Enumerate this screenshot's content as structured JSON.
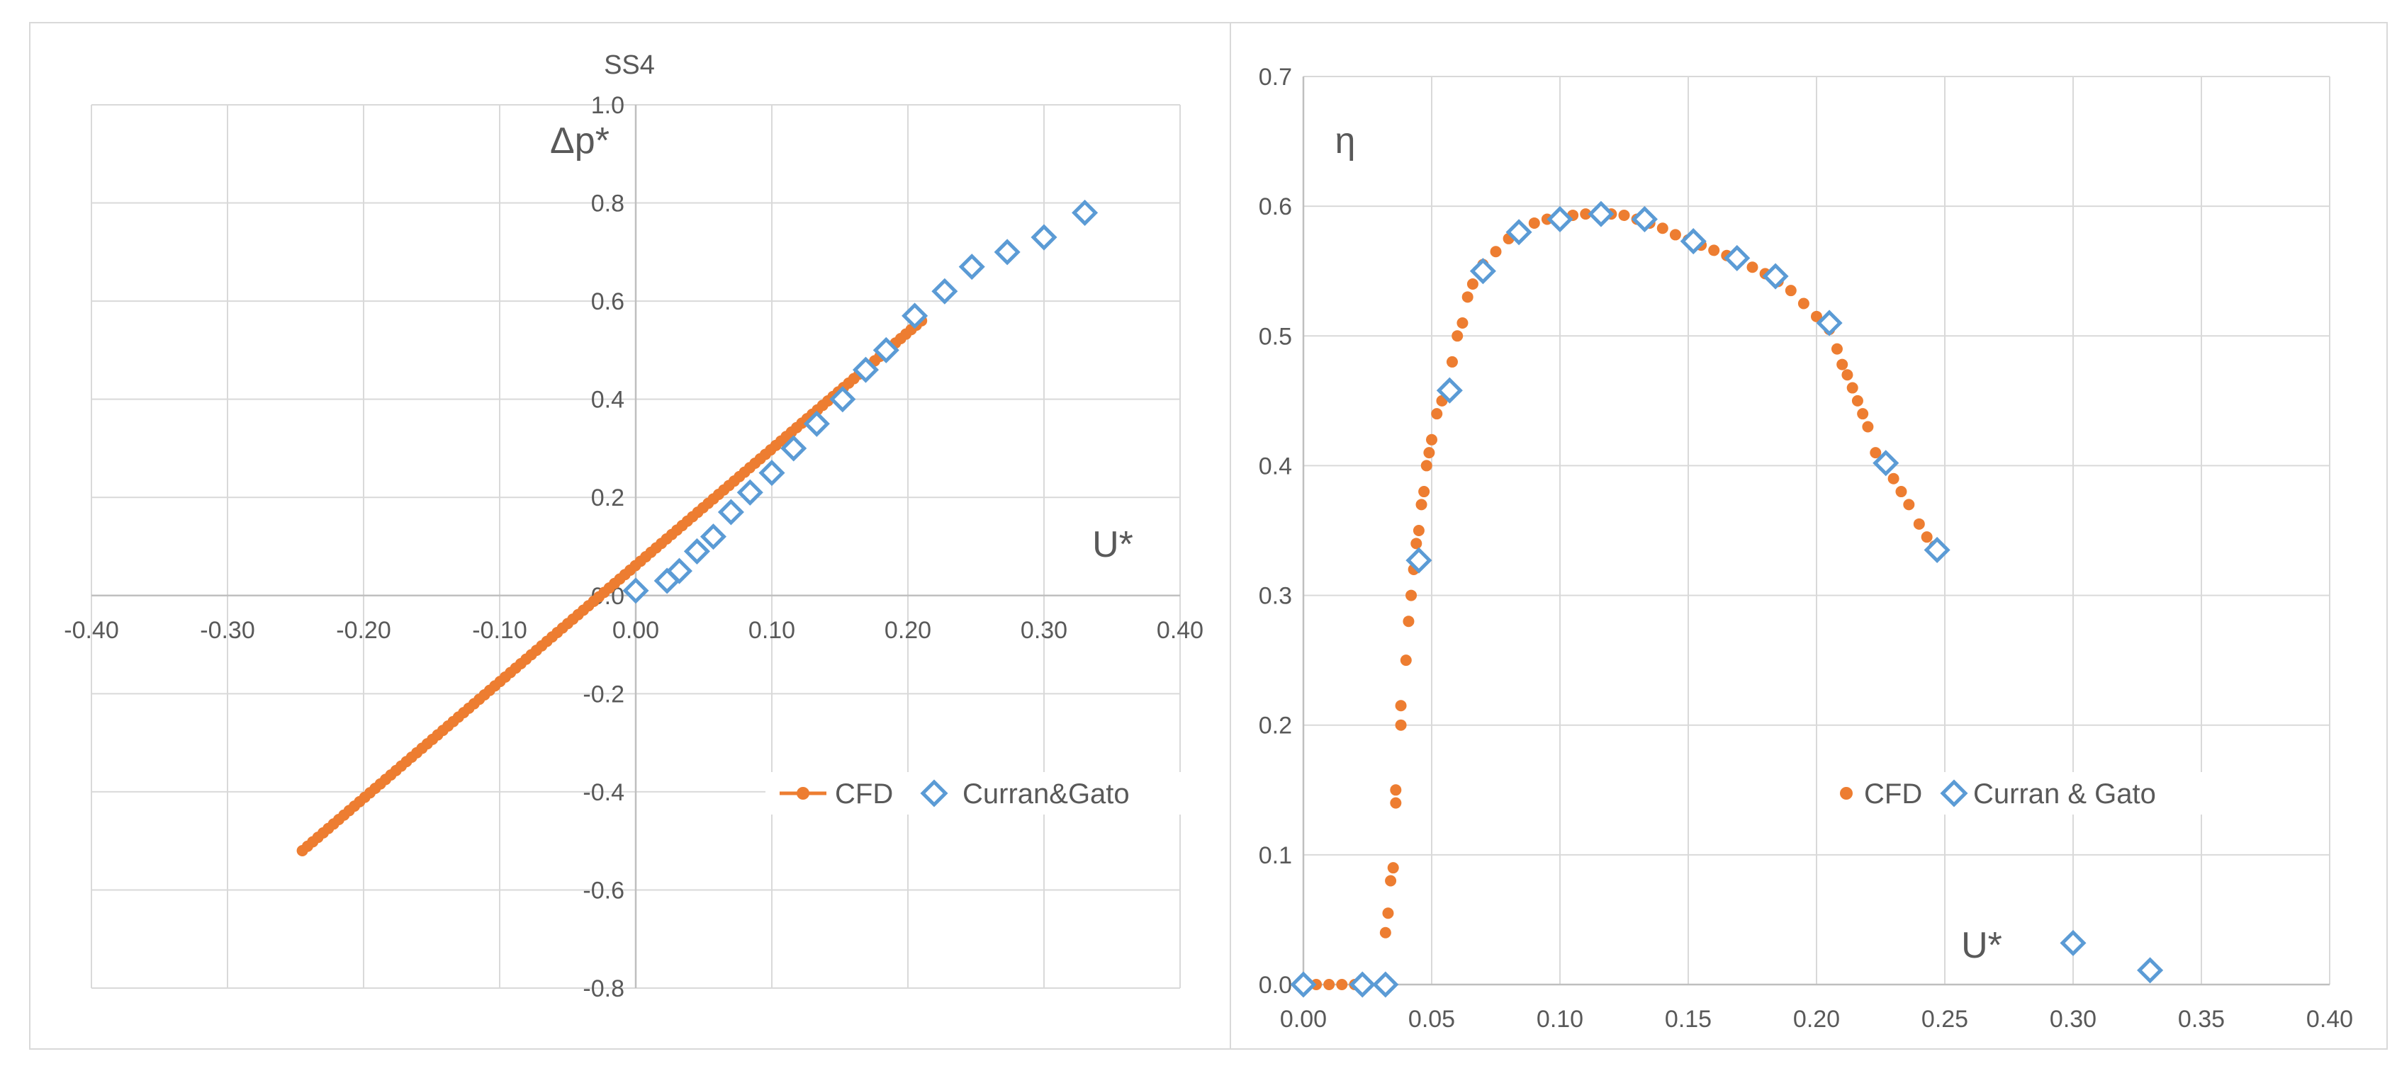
{
  "colors": {
    "cfd": "#ED7D31",
    "exp": "#5B9BD5",
    "grid": "#D9D9D9",
    "text": "#595959"
  },
  "chart_data": [
    {
      "type": "scatter",
      "title": "SS4",
      "xlabel": "U*",
      "ylabel": "Δp*",
      "xlim": [
        -0.4,
        0.4
      ],
      "ylim": [
        -0.8,
        1.0
      ],
      "xticks": [
        "-0.40",
        "-0.30",
        "-0.20",
        "-0.10",
        "0.00",
        "0.10",
        "0.20",
        "0.30",
        "0.40"
      ],
      "yticks": [
        "-0.8",
        "-0.6",
        "-0.4",
        "-0.2",
        "0.0",
        "0.2",
        "0.4",
        "0.6",
        "0.8",
        "1.0"
      ],
      "legend": {
        "position": "lower-right",
        "entries": [
          "CFD",
          "Curran&Gato"
        ]
      },
      "series": [
        {
          "name": "CFD",
          "marker": "circle",
          "line_from": [
            -0.245,
            -0.52
          ],
          "line_to": [
            0.21,
            0.56
          ],
          "points": 120
        },
        {
          "name": "Curran&Gato",
          "marker": "diamond",
          "points_xy": [
            [
              0.0,
              0.01
            ],
            [
              0.023,
              0.03
            ],
            [
              0.032,
              0.05
            ],
            [
              0.045,
              0.09
            ],
            [
              0.057,
              0.12
            ],
            [
              0.07,
              0.17
            ],
            [
              0.084,
              0.21
            ],
            [
              0.1,
              0.25
            ],
            [
              0.116,
              0.3
            ],
            [
              0.133,
              0.35
            ],
            [
              0.152,
              0.4
            ],
            [
              0.169,
              0.46
            ],
            [
              0.184,
              0.5
            ],
            [
              0.205,
              0.57
            ],
            [
              0.227,
              0.62
            ],
            [
              0.247,
              0.67
            ],
            [
              0.273,
              0.7
            ],
            [
              0.3,
              0.73
            ],
            [
              0.33,
              0.78
            ]
          ]
        }
      ]
    },
    {
      "type": "scatter",
      "title": "",
      "xlabel": "U*",
      "ylabel": "η",
      "xlim": [
        0.0,
        0.4
      ],
      "ylim": [
        0.0,
        0.7
      ],
      "xticks": [
        "0.00",
        "0.05",
        "0.10",
        "0.15",
        "0.20",
        "0.25",
        "0.30",
        "0.35",
        "0.40"
      ],
      "yticks": [
        "0.0",
        "0.1",
        "0.2",
        "0.3",
        "0.4",
        "0.5",
        "0.6",
        "0.7"
      ],
      "legend": {
        "position": "lower-center",
        "entries": [
          "CFD",
          "Curran & Gato"
        ]
      },
      "series": [
        {
          "name": "CFD",
          "marker": "circle",
          "points_xy": [
            [
              0.0,
              0.0
            ],
            [
              0.005,
              0.0
            ],
            [
              0.01,
              0.0
            ],
            [
              0.015,
              0.0
            ],
            [
              0.02,
              0.0
            ],
            [
              0.025,
              0.0
            ],
            [
              0.03,
              0.0
            ],
            [
              0.032,
              0.04
            ],
            [
              0.033,
              0.055
            ],
            [
              0.034,
              0.08
            ],
            [
              0.035,
              0.09
            ],
            [
              0.036,
              0.14
            ],
            [
              0.036,
              0.15
            ],
            [
              0.038,
              0.2
            ],
            [
              0.038,
              0.215
            ],
            [
              0.04,
              0.25
            ],
            [
              0.041,
              0.28
            ],
            [
              0.042,
              0.3
            ],
            [
              0.043,
              0.32
            ],
            [
              0.044,
              0.34
            ],
            [
              0.045,
              0.35
            ],
            [
              0.046,
              0.37
            ],
            [
              0.047,
              0.38
            ],
            [
              0.048,
              0.4
            ],
            [
              0.049,
              0.41
            ],
            [
              0.05,
              0.42
            ],
            [
              0.052,
              0.44
            ],
            [
              0.054,
              0.45
            ],
            [
              0.056,
              0.46
            ],
            [
              0.058,
              0.48
            ],
            [
              0.06,
              0.5
            ],
            [
              0.062,
              0.51
            ],
            [
              0.064,
              0.53
            ],
            [
              0.066,
              0.54
            ],
            [
              0.068,
              0.55
            ],
            [
              0.07,
              0.555
            ],
            [
              0.075,
              0.565
            ],
            [
              0.08,
              0.575
            ],
            [
              0.085,
              0.582
            ],
            [
              0.09,
              0.587
            ],
            [
              0.095,
              0.59
            ],
            [
              0.1,
              0.592
            ],
            [
              0.105,
              0.593
            ],
            [
              0.11,
              0.594
            ],
            [
              0.115,
              0.594
            ],
            [
              0.12,
              0.594
            ],
            [
              0.125,
              0.593
            ],
            [
              0.13,
              0.59
            ],
            [
              0.135,
              0.587
            ],
            [
              0.14,
              0.583
            ],
            [
              0.145,
              0.578
            ],
            [
              0.15,
              0.574
            ],
            [
              0.155,
              0.57
            ],
            [
              0.16,
              0.566
            ],
            [
              0.165,
              0.562
            ],
            [
              0.17,
              0.558
            ],
            [
              0.175,
              0.553
            ],
            [
              0.18,
              0.548
            ],
            [
              0.185,
              0.542
            ],
            [
              0.19,
              0.535
            ],
            [
              0.195,
              0.525
            ],
            [
              0.2,
              0.515
            ],
            [
              0.205,
              0.505
            ],
            [
              0.208,
              0.49
            ],
            [
              0.21,
              0.478
            ],
            [
              0.212,
              0.47
            ],
            [
              0.214,
              0.46
            ],
            [
              0.216,
              0.45
            ],
            [
              0.218,
              0.44
            ],
            [
              0.22,
              0.43
            ],
            [
              0.223,
              0.41
            ],
            [
              0.226,
              0.4
            ],
            [
              0.23,
              0.39
            ],
            [
              0.233,
              0.38
            ],
            [
              0.236,
              0.37
            ],
            [
              0.24,
              0.355
            ],
            [
              0.243,
              0.345
            ],
            [
              0.246,
              0.338
            ]
          ]
        },
        {
          "name": "Curran & Gato",
          "marker": "diamond",
          "points_xy": [
            [
              0.0,
              0.0
            ],
            [
              0.023,
              0.0
            ],
            [
              0.032,
              0.0
            ],
            [
              0.045,
              0.327
            ],
            [
              0.057,
              0.458
            ],
            [
              0.07,
              0.55
            ],
            [
              0.084,
              0.58
            ],
            [
              0.1,
              0.59
            ],
            [
              0.116,
              0.594
            ],
            [
              0.133,
              0.59
            ],
            [
              0.152,
              0.573
            ],
            [
              0.169,
              0.56
            ],
            [
              0.184,
              0.546
            ],
            [
              0.205,
              0.51
            ],
            [
              0.227,
              0.402
            ],
            [
              0.247,
              0.335
            ],
            [
              0.3,
              0.032
            ],
            [
              0.33,
              0.011
            ]
          ]
        }
      ]
    }
  ]
}
